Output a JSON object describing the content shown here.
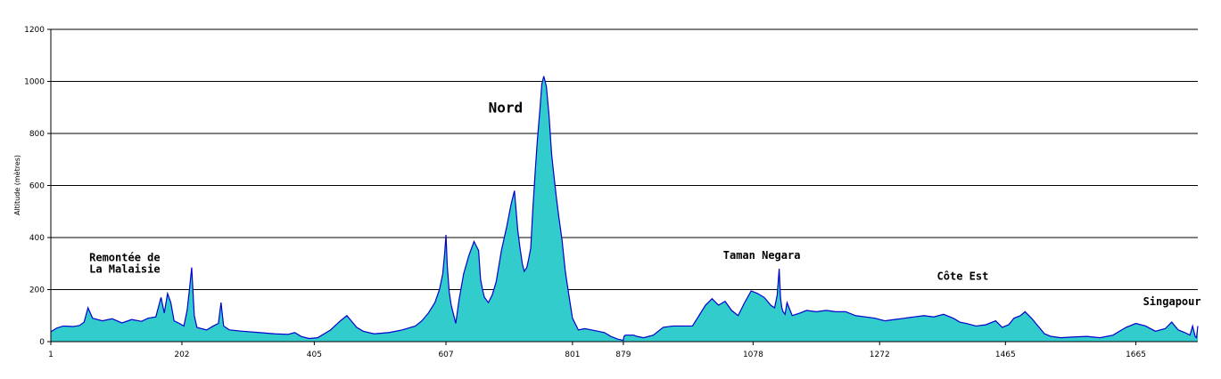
{
  "chart_data": {
    "type": "area",
    "title": "",
    "xlabel": "",
    "ylabel": "Altitude (mètres)",
    "xlim": [
      1,
      1760
    ],
    "ylim": [
      0,
      1200
    ],
    "yticks": [
      0,
      200,
      400,
      600,
      800,
      1000,
      1200
    ],
    "xticks": [
      {
        "value": 1,
        "label": "1"
      },
      {
        "value": 202,
        "label": "202"
      },
      {
        "value": 405,
        "label": "405"
      },
      {
        "value": 607,
        "label": "607"
      },
      {
        "value": 801,
        "label": "801"
      },
      {
        "value": 879,
        "label": "879"
      },
      {
        "value": 1078,
        "label": "1078"
      },
      {
        "value": 1272,
        "label": "1272"
      },
      {
        "value": 1465,
        "label": "1465"
      },
      {
        "value": 1665,
        "label": "1665"
      }
    ],
    "grid": true,
    "fill_color": "#33cccc",
    "line_color": "#0000cc",
    "series": [
      {
        "x": [
          1,
          10,
          20,
          35,
          45,
          52,
          58,
          65,
          80,
          95,
          110,
          125,
          140,
          150,
          162,
          170,
          175,
          180,
          185,
          190,
          198,
          205,
          210,
          214,
          217,
          221,
          225,
          232,
          240,
          250,
          258,
          262,
          266,
          275,
          295,
          320,
          345,
          365,
          375,
          385,
          397,
          410,
          430,
          445,
          455,
          465,
          470,
          480,
          497,
          520,
          540,
          560,
          570,
          580,
          590,
          597,
          602,
          605,
          607,
          609,
          612,
          615,
          618,
          620,
          622,
          627,
          634,
          642,
          650,
          657,
          660,
          663,
          666,
          669,
          672,
          675,
          678,
          684,
          692,
          700,
          707,
          712,
          717,
          720,
          724,
          727,
          731,
          734,
          737,
          740,
          744,
          747,
          751,
          754,
          757,
          761,
          765,
          769,
          772,
          776,
          780,
          785,
          790,
          796,
          801,
          810,
          820,
          830,
          840,
          850,
          860,
          870,
          879,
          880,
          882,
          885,
          890,
          895,
          900,
          910,
          925,
          940,
          955,
          970,
          985,
          995,
          1005,
          1015,
          1025,
          1035,
          1045,
          1055,
          1065,
          1075,
          1085,
          1095,
          1105,
          1111,
          1115,
          1118,
          1120,
          1122,
          1124,
          1127,
          1130,
          1138,
          1150,
          1160,
          1175,
          1190,
          1205,
          1220,
          1235,
          1250,
          1265,
          1280,
          1295,
          1310,
          1325,
          1340,
          1355,
          1370,
          1385,
          1395,
          1405,
          1420,
          1435,
          1450,
          1460,
          1470,
          1478,
          1488,
          1495,
          1505,
          1515,
          1525,
          1535,
          1550,
          1570,
          1590,
          1610,
          1630,
          1650,
          1665,
          1680,
          1695,
          1710,
          1720,
          1730,
          1740,
          1748,
          1752,
          1756,
          1758,
          1760
        ],
        "y": [
          38,
          52,
          60,
          58,
          62,
          75,
          130,
          90,
          80,
          88,
          72,
          85,
          78,
          90,
          95,
          170,
          110,
          185,
          150,
          80,
          70,
          60,
          120,
          210,
          285,
          100,
          55,
          50,
          45,
          60,
          70,
          150,
          60,
          45,
          40,
          35,
          30,
          28,
          35,
          20,
          12,
          15,
          45,
          80,
          100,
          70,
          55,
          40,
          30,
          35,
          45,
          60,
          80,
          110,
          150,
          200,
          260,
          340,
          410,
          290,
          190,
          140,
          110,
          90,
          70,
          160,
          260,
          330,
          385,
          350,
          240,
          200,
          170,
          160,
          150,
          165,
          180,
          230,
          350,
          440,
          530,
          580,
          430,
          370,
          300,
          270,
          285,
          320,
          360,
          500,
          660,
          770,
          890,
          990,
          1020,
          980,
          870,
          720,
          650,
          560,
          480,
          390,
          270,
          170,
          90,
          45,
          50,
          45,
          40,
          35,
          20,
          10,
          5,
          20,
          25,
          25,
          25,
          25,
          20,
          15,
          25,
          55,
          60,
          60,
          60,
          100,
          140,
          165,
          140,
          155,
          120,
          100,
          150,
          195,
          185,
          170,
          140,
          130,
          180,
          280,
          170,
          130,
          115,
          105,
          150,
          100,
          110,
          120,
          115,
          120,
          115,
          115,
          100,
          95,
          90,
          80,
          85,
          90,
          95,
          100,
          95,
          105,
          90,
          75,
          70,
          60,
          65,
          80,
          55,
          65,
          90,
          100,
          115,
          90,
          60,
          30,
          20,
          15,
          18,
          20,
          15,
          25,
          55,
          70,
          60,
          40,
          50,
          75,
          45,
          35,
          25,
          60,
          20,
          15,
          60
        ]
      }
    ],
    "annotations": [
      {
        "id": "remontee-line1",
        "text": "Remontée de",
        "x": 60,
        "y": 310
      },
      {
        "id": "remontee-line2",
        "text": "La Malaisie",
        "x": 60,
        "y": 265
      },
      {
        "id": "nord",
        "text": "Nord",
        "x": 672,
        "y": 880
      },
      {
        "id": "taman-negara",
        "text": "Taman Negara",
        "x": 1032,
        "y": 318
      },
      {
        "id": "cote-est",
        "text": "Côte Est",
        "x": 1360,
        "y": 238
      },
      {
        "id": "singapour",
        "text": "Singapour",
        "x": 1676,
        "y": 140
      }
    ]
  }
}
